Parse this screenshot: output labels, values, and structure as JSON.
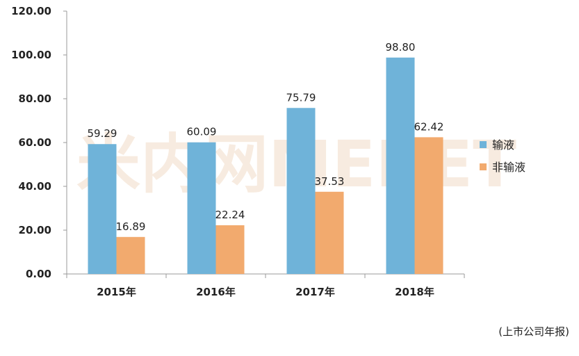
{
  "chart_data": {
    "type": "bar",
    "title": "",
    "xlabel": "",
    "ylabel": "",
    "categories": [
      "2015年",
      "2016年",
      "2017年",
      "2018年"
    ],
    "series": [
      {
        "name": "输液",
        "values": [
          59.29,
          60.09,
          75.79,
          98.8
        ],
        "labels": [
          "59.29",
          "60.09",
          "75.79",
          "98.80"
        ],
        "color": "#6fb3d9"
      },
      {
        "name": "非输液",
        "values": [
          16.89,
          22.24,
          37.53,
          62.42
        ],
        "labels": [
          "16.89",
          "22.24",
          "37.53",
          "62.42"
        ],
        "color": "#f2aa6e"
      }
    ],
    "ylim": [
      0,
      120
    ],
    "yticks": [
      "0.00",
      "20.00",
      "40.00",
      "60.00",
      "80.00",
      "100.00",
      "120.00"
    ],
    "ytick_values": [
      0,
      20,
      40,
      60,
      80,
      100,
      120
    ],
    "legend_position": "right",
    "grid": false
  },
  "watermark": "米内网MENET",
  "source_note": "(上市公司年报)"
}
